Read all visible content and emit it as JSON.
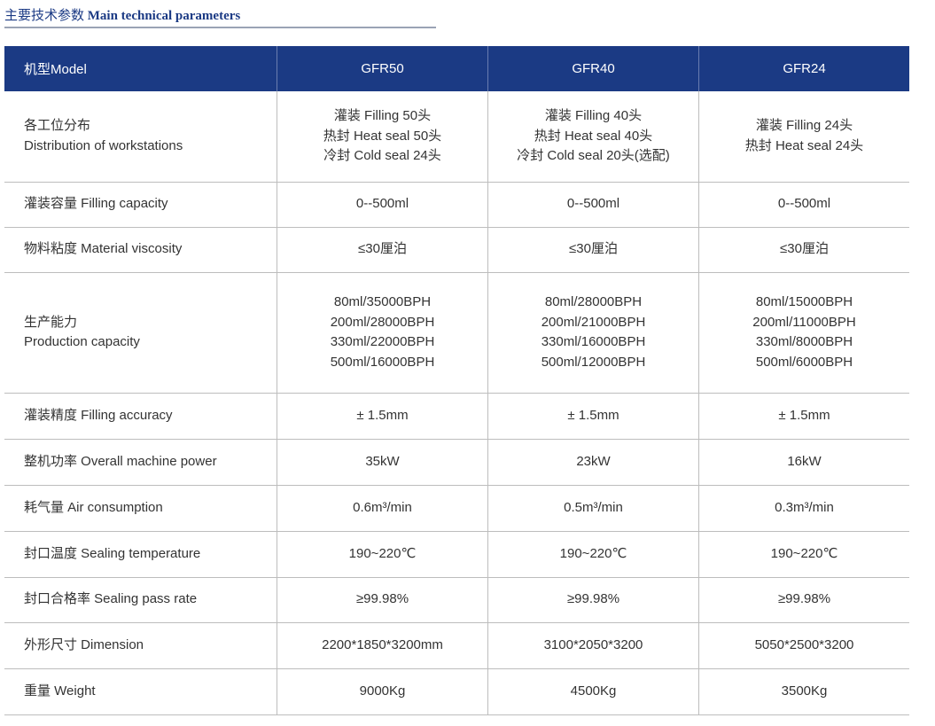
{
  "title": {
    "cn": "主要技术参数",
    "en": "Main technical parameters"
  },
  "header": [
    "机型Model",
    "GFR50",
    "GFR40",
    "GFR24"
  ],
  "rows": [
    {
      "label": [
        "各工位分布",
        "Distribution of workstations"
      ],
      "values": [
        [
          "灌装 Filling 50头",
          "热封 Heat seal 50头",
          "冷封 Cold seal 24头"
        ],
        [
          "灌装 Filling 40头",
          "热封 Heat seal 40头",
          "冷封 Cold seal 20头(选配)"
        ],
        [
          "灌装 Filling 24头",
          "热封 Heat seal 24头"
        ]
      ]
    },
    {
      "label": [
        "灌装容量 Filling capacity"
      ],
      "values": [
        [
          "0--500ml"
        ],
        [
          "0--500ml"
        ],
        [
          "0--500ml"
        ]
      ]
    },
    {
      "label": [
        "物料粘度 Material viscosity"
      ],
      "values": [
        [
          "≤30厘泊"
        ],
        [
          "≤30厘泊"
        ],
        [
          "≤30厘泊"
        ]
      ]
    },
    {
      "label": [
        "生产能力",
        "Production capacity"
      ],
      "values": [
        [
          "80ml/35000BPH",
          "200ml/28000BPH",
          "330ml/22000BPH",
          "500ml/16000BPH"
        ],
        [
          "80ml/28000BPH",
          "200ml/21000BPH",
          "330ml/16000BPH",
          "500ml/12000BPH"
        ],
        [
          "80ml/15000BPH",
          "200ml/11000BPH",
          "330ml/8000BPH",
          "500ml/6000BPH"
        ]
      ]
    },
    {
      "label": [
        "灌装精度 Filling accuracy"
      ],
      "values": [
        [
          "± 1.5mm"
        ],
        [
          "± 1.5mm"
        ],
        [
          "± 1.5mm"
        ]
      ]
    },
    {
      "label": [
        "整机功率 Overall machine power"
      ],
      "values": [
        [
          "35kW"
        ],
        [
          "23kW"
        ],
        [
          "16kW"
        ]
      ]
    },
    {
      "label": [
        "耗气量 Air consumption"
      ],
      "values": [
        [
          "0.6m³/min"
        ],
        [
          "0.5m³/min"
        ],
        [
          "0.3m³/min"
        ]
      ]
    },
    {
      "label": [
        "封口温度 Sealing temperature"
      ],
      "values": [
        [
          "190~220℃"
        ],
        [
          "190~220℃"
        ],
        [
          "190~220℃"
        ]
      ]
    },
    {
      "label": [
        "封口合格率 Sealing pass rate"
      ],
      "values": [
        [
          "≥99.98%"
        ],
        [
          "≥99.98%"
        ],
        [
          "≥99.98%"
        ]
      ]
    },
    {
      "label": [
        "外形尺寸 Dimension"
      ],
      "values": [
        [
          "2200*1850*3200mm"
        ],
        [
          "3100*2050*3200"
        ],
        [
          "5050*2500*3200"
        ]
      ]
    },
    {
      "label": [
        "重量 Weight"
      ],
      "values": [
        [
          "9000Kg"
        ],
        [
          "4500Kg"
        ],
        [
          "3500Kg"
        ]
      ]
    }
  ]
}
